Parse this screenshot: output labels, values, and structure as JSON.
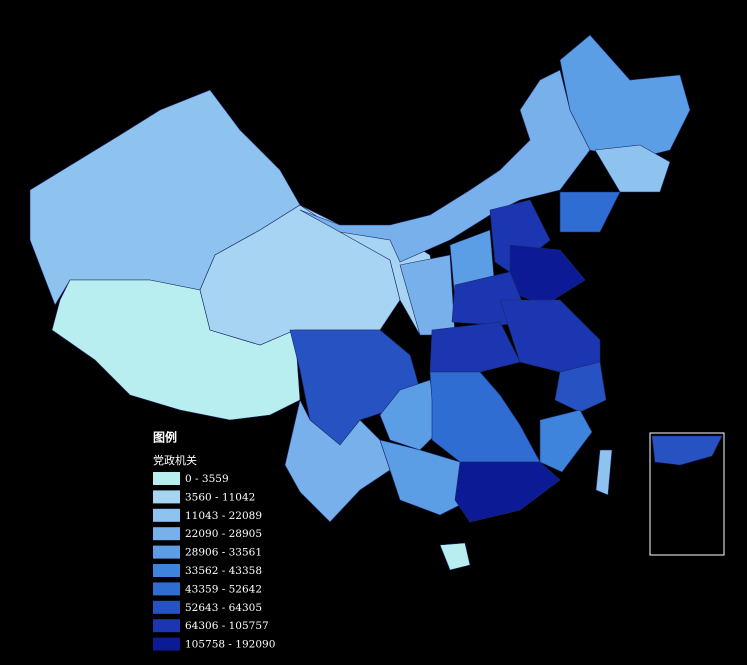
{
  "legend": {
    "title": "图例",
    "subtitle": "党政机关",
    "classes": [
      {
        "label": "0 - 3559",
        "color": "#b8eef0"
      },
      {
        "label": "3560 - 11042",
        "color": "#a6d4f2"
      },
      {
        "label": "11043 - 22089",
        "color": "#8ec2ef"
      },
      {
        "label": "22090 - 28905",
        "color": "#77b0eb"
      },
      {
        "label": "28906 - 33561",
        "color": "#5c9ee6"
      },
      {
        "label": "33562 - 43358",
        "color": "#3f84dc"
      },
      {
        "label": "43359 - 52642",
        "color": "#2f6dd2"
      },
      {
        "label": "52643 - 64305",
        "color": "#2753c2"
      },
      {
        "label": "64306 - 105757",
        "color": "#1b36b0"
      },
      {
        "label": "105758 - 192090",
        "color": "#0d1a96"
      }
    ]
  }
}
